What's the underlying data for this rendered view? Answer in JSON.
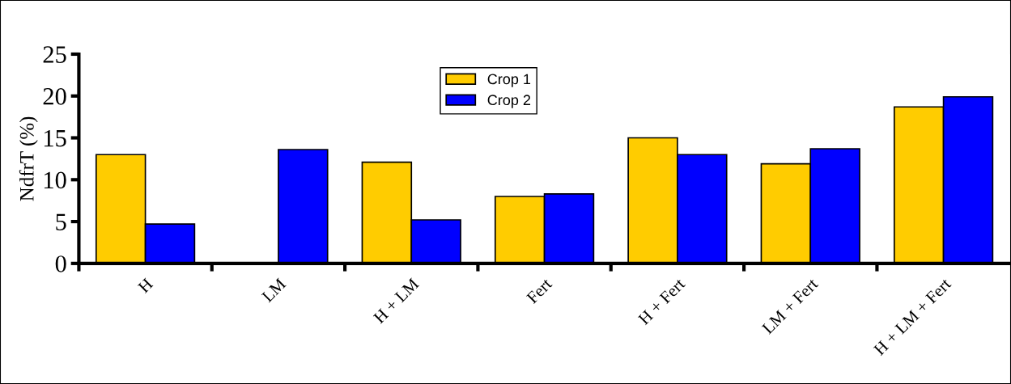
{
  "chart_data": {
    "type": "bar",
    "ylabel": "NdfrT (%)",
    "categories": [
      "H",
      "LM",
      "H + LM",
      "Fert",
      "H + Fert",
      "LM + Fert",
      "H + LM + Fert"
    ],
    "series": [
      {
        "name": "Crop 1",
        "color": "#ffcc00",
        "values": [
          13,
          null,
          12.1,
          8.0,
          15.0,
          11.9,
          18.7
        ]
      },
      {
        "name": "Crop 2",
        "color": "#0000ff",
        "values": [
          4.7,
          13.6,
          5.2,
          8.3,
          13.0,
          13.7,
          19.9
        ]
      }
    ],
    "ylim": [
      0,
      25
    ],
    "yticks": [
      0,
      5,
      10,
      15,
      20,
      25
    ],
    "grid": false,
    "legend": "top"
  }
}
